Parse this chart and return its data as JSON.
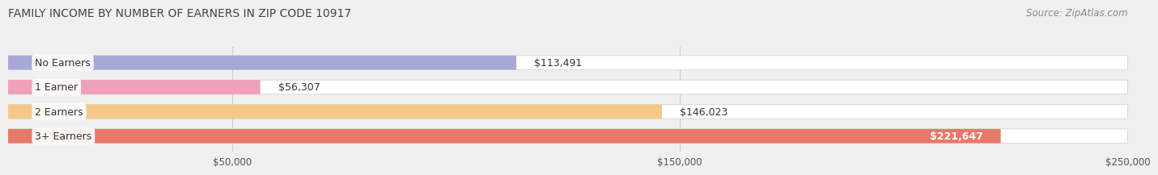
{
  "title": "FAMILY INCOME BY NUMBER OF EARNERS IN ZIP CODE 10917",
  "source": "Source: ZipAtlas.com",
  "categories": [
    "No Earners",
    "1 Earner",
    "2 Earners",
    "3+ Earners"
  ],
  "values": [
    113491,
    56307,
    146023,
    221647
  ],
  "bar_colors": [
    "#a8a8d8",
    "#f0a0b8",
    "#f5c88a",
    "#e87868"
  ],
  "label_colors": [
    "#000000",
    "#000000",
    "#000000",
    "#ffffff"
  ],
  "xlim": [
    0,
    250000
  ],
  "xticks": [
    50000,
    150000,
    250000
  ],
  "xtick_labels": [
    "$50,000",
    "$150,000",
    "$250,000"
  ],
  "background_color": "#f0f0f0",
  "title_fontsize": 10,
  "source_fontsize": 8.5
}
